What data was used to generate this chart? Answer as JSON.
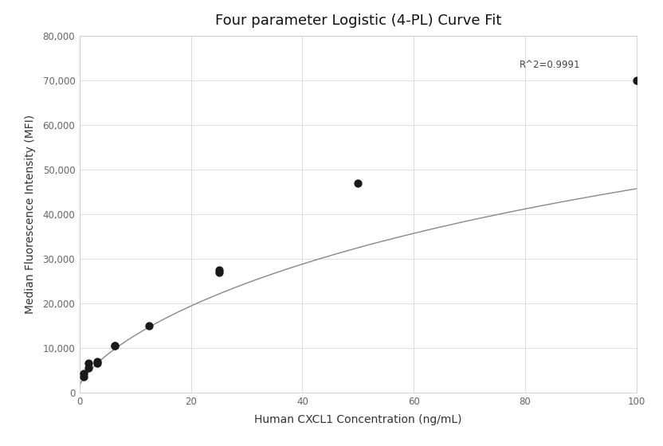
{
  "title": "Four parameter Logistic (4-PL) Curve Fit",
  "xlabel": "Human CXCL1 Concentration (ng/mL)",
  "ylabel": "Median Fluorescence Intensity (MFI)",
  "scatter_x": [
    0.78,
    0.78,
    1.56,
    1.56,
    3.125,
    3.125,
    6.25,
    6.25,
    12.5,
    25.0,
    25.0,
    50.0,
    100.0
  ],
  "scatter_y": [
    3500,
    4200,
    5500,
    6500,
    7000,
    6500,
    10500,
    10500,
    15000,
    27000,
    27500,
    47000,
    70000
  ],
  "dot_color": "#1a1a1a",
  "dot_size": 55,
  "line_color": "#888888",
  "line_width": 1.0,
  "r_squared": "R^2=0.9991",
  "r_squared_x": 79,
  "r_squared_y": 73500,
  "xlim": [
    0,
    100
  ],
  "ylim": [
    0,
    80000
  ],
  "xticks": [
    0,
    20,
    40,
    60,
    80,
    100
  ],
  "yticks": [
    0,
    10000,
    20000,
    30000,
    40000,
    50000,
    60000,
    70000,
    80000
  ],
  "ytick_labels": [
    "0",
    "10,000",
    "20,000",
    "30,000",
    "40,000",
    "50,000",
    "60,000",
    "70,000",
    "80,000"
  ],
  "xtick_labels": [
    "0",
    "20",
    "40",
    "60",
    "80",
    "100"
  ],
  "background_color": "#ffffff",
  "grid_color": "#d4dcea",
  "title_fontsize": 13,
  "axis_label_fontsize": 10,
  "tick_fontsize": 8.5,
  "figsize": [
    8.32,
    5.6
  ],
  "dpi": 100,
  "4pl_A": 1500,
  "4pl_B": 0.75,
  "4pl_C": 200,
  "4pl_D": 120000
}
